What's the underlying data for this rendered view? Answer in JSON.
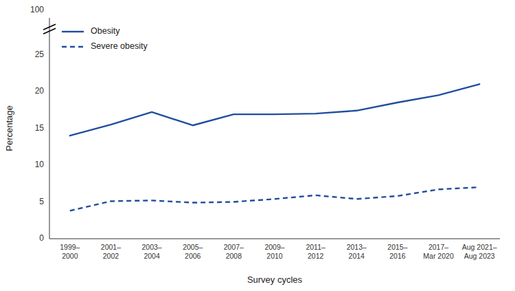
{
  "chart_data": {
    "type": "line",
    "categories": [
      "1999–\n2000",
      "2001–\n2002",
      "2003–\n2004",
      "2005–\n2006",
      "2007–\n2008",
      "2009–\n2010",
      "2011–\n2012",
      "2013–\n2014",
      "2015–\n2016",
      "2017–\nMar 2020",
      "Aug 2021–\nAug 2023"
    ],
    "series": [
      {
        "name": "Obesity",
        "color": "#1f4e9e",
        "line_style": "solid",
        "values": [
          14.0,
          15.5,
          17.2,
          15.4,
          16.9,
          16.9,
          17.0,
          17.4,
          18.5,
          19.5,
          21.0
        ]
      },
      {
        "name": "Severe obesity",
        "color": "#1f4e9e",
        "line_style": "dashed",
        "values": [
          3.8,
          5.1,
          5.2,
          4.9,
          5.0,
          5.4,
          5.9,
          5.4,
          5.8,
          6.7,
          7.0
        ]
      }
    ],
    "x_label": "Survey cycles",
    "y_label": "Percentage",
    "ylim": [
      0,
      30
    ],
    "yticks": [
      0,
      5,
      10,
      15,
      20,
      25
    ],
    "annotations": [
      "100"
    ],
    "legend": "upper left",
    "grid": false
  }
}
